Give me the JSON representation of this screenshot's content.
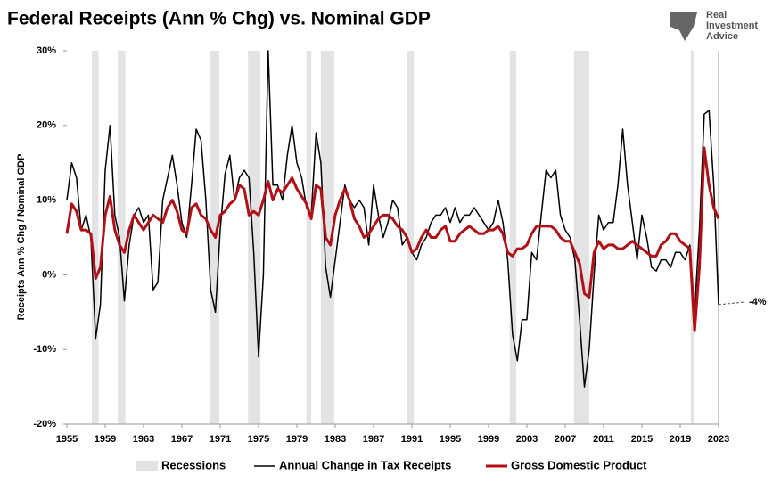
{
  "chart_data": {
    "type": "line",
    "title": "Federal Receipts (Ann % Chg) vs. Nominal GDP",
    "ylabel": "Receipts Ann % Chg / Nominal GDP",
    "logo": [
      "Real",
      "Investment",
      "Advice"
    ],
    "annotation": "-4%",
    "recession_label": "Recessions",
    "recession_color": "#e3e3e6",
    "recessions": [
      {
        "start": 1957.6,
        "end": 1958.3
      },
      {
        "start": 1960.3,
        "end": 1961.1
      },
      {
        "start": 1969.9,
        "end": 1970.9
      },
      {
        "start": 1973.9,
        "end": 1975.2
      },
      {
        "start": 1980.0,
        "end": 1980.5
      },
      {
        "start": 1981.5,
        "end": 1982.9
      },
      {
        "start": 1990.5,
        "end": 1991.2
      },
      {
        "start": 2001.2,
        "end": 2001.9
      },
      {
        "start": 2007.9,
        "end": 2009.5
      },
      {
        "start": 2020.1,
        "end": 2020.4
      }
    ],
    "x": [
      1955,
      1955.5,
      1956,
      1956.5,
      1957,
      1957.5,
      1958,
      1958.5,
      1959,
      1959.5,
      1960,
      1960.5,
      1961,
      1961.5,
      1962,
      1962.5,
      1963,
      1963.5,
      1964,
      1964.5,
      1965,
      1965.5,
      1966,
      1966.5,
      1967,
      1967.5,
      1968,
      1968.5,
      1969,
      1969.5,
      1970,
      1970.5,
      1971,
      1971.5,
      1972,
      1972.5,
      1973,
      1973.5,
      1974,
      1974.5,
      1975,
      1975.5,
      1976,
      1976.5,
      1977,
      1977.5,
      1978,
      1978.5,
      1979,
      1979.5,
      1980,
      1980.5,
      1981,
      1981.5,
      1982,
      1982.5,
      1983,
      1983.5,
      1984,
      1984.5,
      1985,
      1985.5,
      1986,
      1986.5,
      1987,
      1987.5,
      1988,
      1988.5,
      1989,
      1989.5,
      1990,
      1990.5,
      1991,
      1991.5,
      1992,
      1992.5,
      1993,
      1993.5,
      1994,
      1994.5,
      1995,
      1995.5,
      1996,
      1996.5,
      1997,
      1997.5,
      1998,
      1998.5,
      1999,
      1999.5,
      2000,
      2000.5,
      2001,
      2001.5,
      2002,
      2002.5,
      2003,
      2003.5,
      2004,
      2004.5,
      2005,
      2005.5,
      2006,
      2006.5,
      2007,
      2007.5,
      2008,
      2008.5,
      2009,
      2009.5,
      2010,
      2010.5,
      2011,
      2011.5,
      2012,
      2012.5,
      2013,
      2013.5,
      2014,
      2014.5,
      2015,
      2015.5,
      2016,
      2016.5,
      2017,
      2017.5,
      2018,
      2018.5,
      2019,
      2019.5,
      2020,
      2020.5,
      2021,
      2021.5,
      2022,
      2022.5,
      2023
    ],
    "series": [
      {
        "name": "Annual Change in Tax Receipts",
        "color": "#000000",
        "width": 1.5,
        "values": [
          10,
          15,
          13,
          6,
          8,
          5,
          -8.5,
          -4,
          14,
          20,
          8,
          5,
          -3.5,
          4,
          8,
          9,
          7,
          8,
          -2,
          -1,
          10,
          13,
          16,
          12,
          7,
          5,
          12,
          19.5,
          18,
          10,
          -2,
          -5,
          6,
          13.5,
          16,
          10,
          13,
          14,
          13,
          3,
          -11,
          0,
          30,
          12,
          12,
          10,
          16,
          20,
          15,
          13,
          9,
          8,
          19,
          15,
          1,
          -3,
          2,
          7,
          12,
          10,
          9,
          10,
          9,
          4,
          12,
          8,
          5,
          7,
          10,
          9,
          4,
          5,
          3,
          2,
          4,
          5,
          7,
          8,
          8,
          9,
          7,
          9,
          7,
          8,
          8,
          9,
          8,
          7,
          6,
          7,
          10,
          7,
          2,
          -8,
          -11.5,
          -6,
          -6,
          3,
          2,
          8,
          14,
          13,
          14,
          8,
          6,
          5,
          2,
          -6,
          -15,
          -10,
          0,
          8,
          6,
          7,
          7,
          12,
          19.5,
          12,
          7,
          2,
          8,
          5,
          1,
          0.5,
          2,
          2,
          1,
          3,
          3,
          2,
          4,
          -5,
          6,
          21.5,
          22,
          12,
          -4
        ]
      },
      {
        "name": "Gross Domestic Product",
        "color": "#b01116",
        "width": 3,
        "values": [
          5.5,
          9.5,
          8.5,
          6,
          6,
          5.5,
          -0.5,
          1,
          8,
          10.5,
          6,
          4,
          3,
          6,
          8,
          7,
          6,
          7,
          8,
          7.5,
          7,
          9,
          10,
          8.5,
          6,
          5.5,
          9,
          9.5,
          8,
          7.5,
          6,
          5,
          8,
          8.5,
          9.5,
          10,
          12,
          11.5,
          8,
          8.5,
          8,
          10,
          12.5,
          10,
          11.5,
          11,
          12,
          13,
          11.5,
          10.5,
          9.5,
          7.5,
          12,
          11.5,
          5,
          4,
          8,
          10,
          11.5,
          10,
          7.5,
          6.5,
          5,
          5.5,
          6.5,
          7.5,
          8,
          8,
          7.5,
          6.5,
          6,
          5,
          3,
          3.5,
          5,
          6,
          5,
          5,
          6,
          6.5,
          4.5,
          4.5,
          5.5,
          6,
          6.5,
          6,
          5.5,
          5.5,
          6,
          6,
          6.5,
          5.5,
          3,
          2.5,
          3.5,
          3.5,
          4,
          5.5,
          6.5,
          6.5,
          6.5,
          6.5,
          6,
          5,
          4.5,
          4.5,
          3,
          1.5,
          -2.5,
          -3,
          3,
          4.5,
          3.5,
          4,
          4,
          3.5,
          3.5,
          4,
          4.5,
          4,
          3.5,
          3,
          2.5,
          2.5,
          4,
          4.5,
          5.5,
          5.5,
          4.5,
          4,
          3.5,
          -7.5,
          1,
          17,
          12,
          9,
          7.5
        ]
      }
    ],
    "xlim": [
      1955,
      2023
    ],
    "xticks": [
      1955,
      1959,
      1963,
      1967,
      1971,
      1975,
      1979,
      1983,
      1987,
      1991,
      1995,
      1999,
      2003,
      2007,
      2011,
      2015,
      2019,
      2023
    ],
    "ylim": [
      -20,
      30
    ],
    "yticks": [
      {
        "value": -20,
        "label": "-20%"
      },
      {
        "value": -10,
        "label": "-10%"
      },
      {
        "value": 0,
        "label": "0%"
      },
      {
        "value": 10,
        "label": "10%"
      },
      {
        "value": 20,
        "label": "20%"
      },
      {
        "value": 30,
        "label": "30%"
      }
    ]
  }
}
